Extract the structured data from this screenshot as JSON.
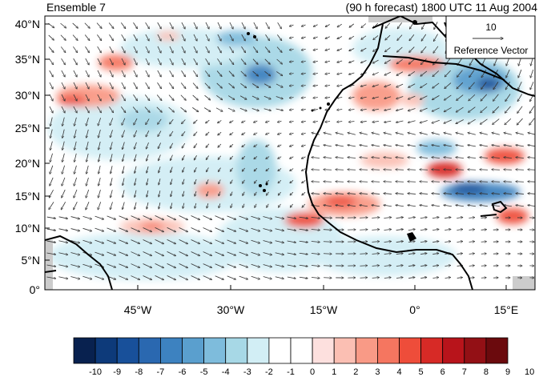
{
  "titles": {
    "left": "Ensemble 7",
    "right": "(90 h forecast) 1800 UTC 11 Aug 2004"
  },
  "map": {
    "lat_labels": [
      "40°N",
      "35°N",
      "30°N",
      "25°N",
      "20°N",
      "15°N",
      "10°N",
      "5°N",
      "0°"
    ],
    "lon_labels": [
      "45°W",
      "30°W",
      "15°W",
      "0°",
      "15°E"
    ],
    "lat_range": [
      0,
      40
    ],
    "lon_range": [
      -60,
      20
    ],
    "background": "#ffffff",
    "land_line_color": "#000000"
  },
  "reference_vector": {
    "value": "10",
    "label": "Reference Vector"
  },
  "colorbar": {
    "labels": [
      "-10",
      "-9",
      "-8",
      "-7",
      "-6",
      "-5",
      "-4",
      "-3",
      "-2",
      "-1",
      "0",
      "1",
      "2",
      "3",
      "4",
      "5",
      "6",
      "7",
      "8",
      "9",
      "10"
    ],
    "colors": [
      "#08214f",
      "#0d3a7a",
      "#18509a",
      "#2a68b0",
      "#3d82c0",
      "#5a9fce",
      "#7ebcdc",
      "#a7d8e6",
      "#d2eef5",
      "#ffffff",
      "#ffffff",
      "#fde0de",
      "#fbbfb3",
      "#f99a86",
      "#f57660",
      "#ee4d3a",
      "#d72a26",
      "#b8141b",
      "#931015",
      "#6b0a0d"
    ]
  }
}
